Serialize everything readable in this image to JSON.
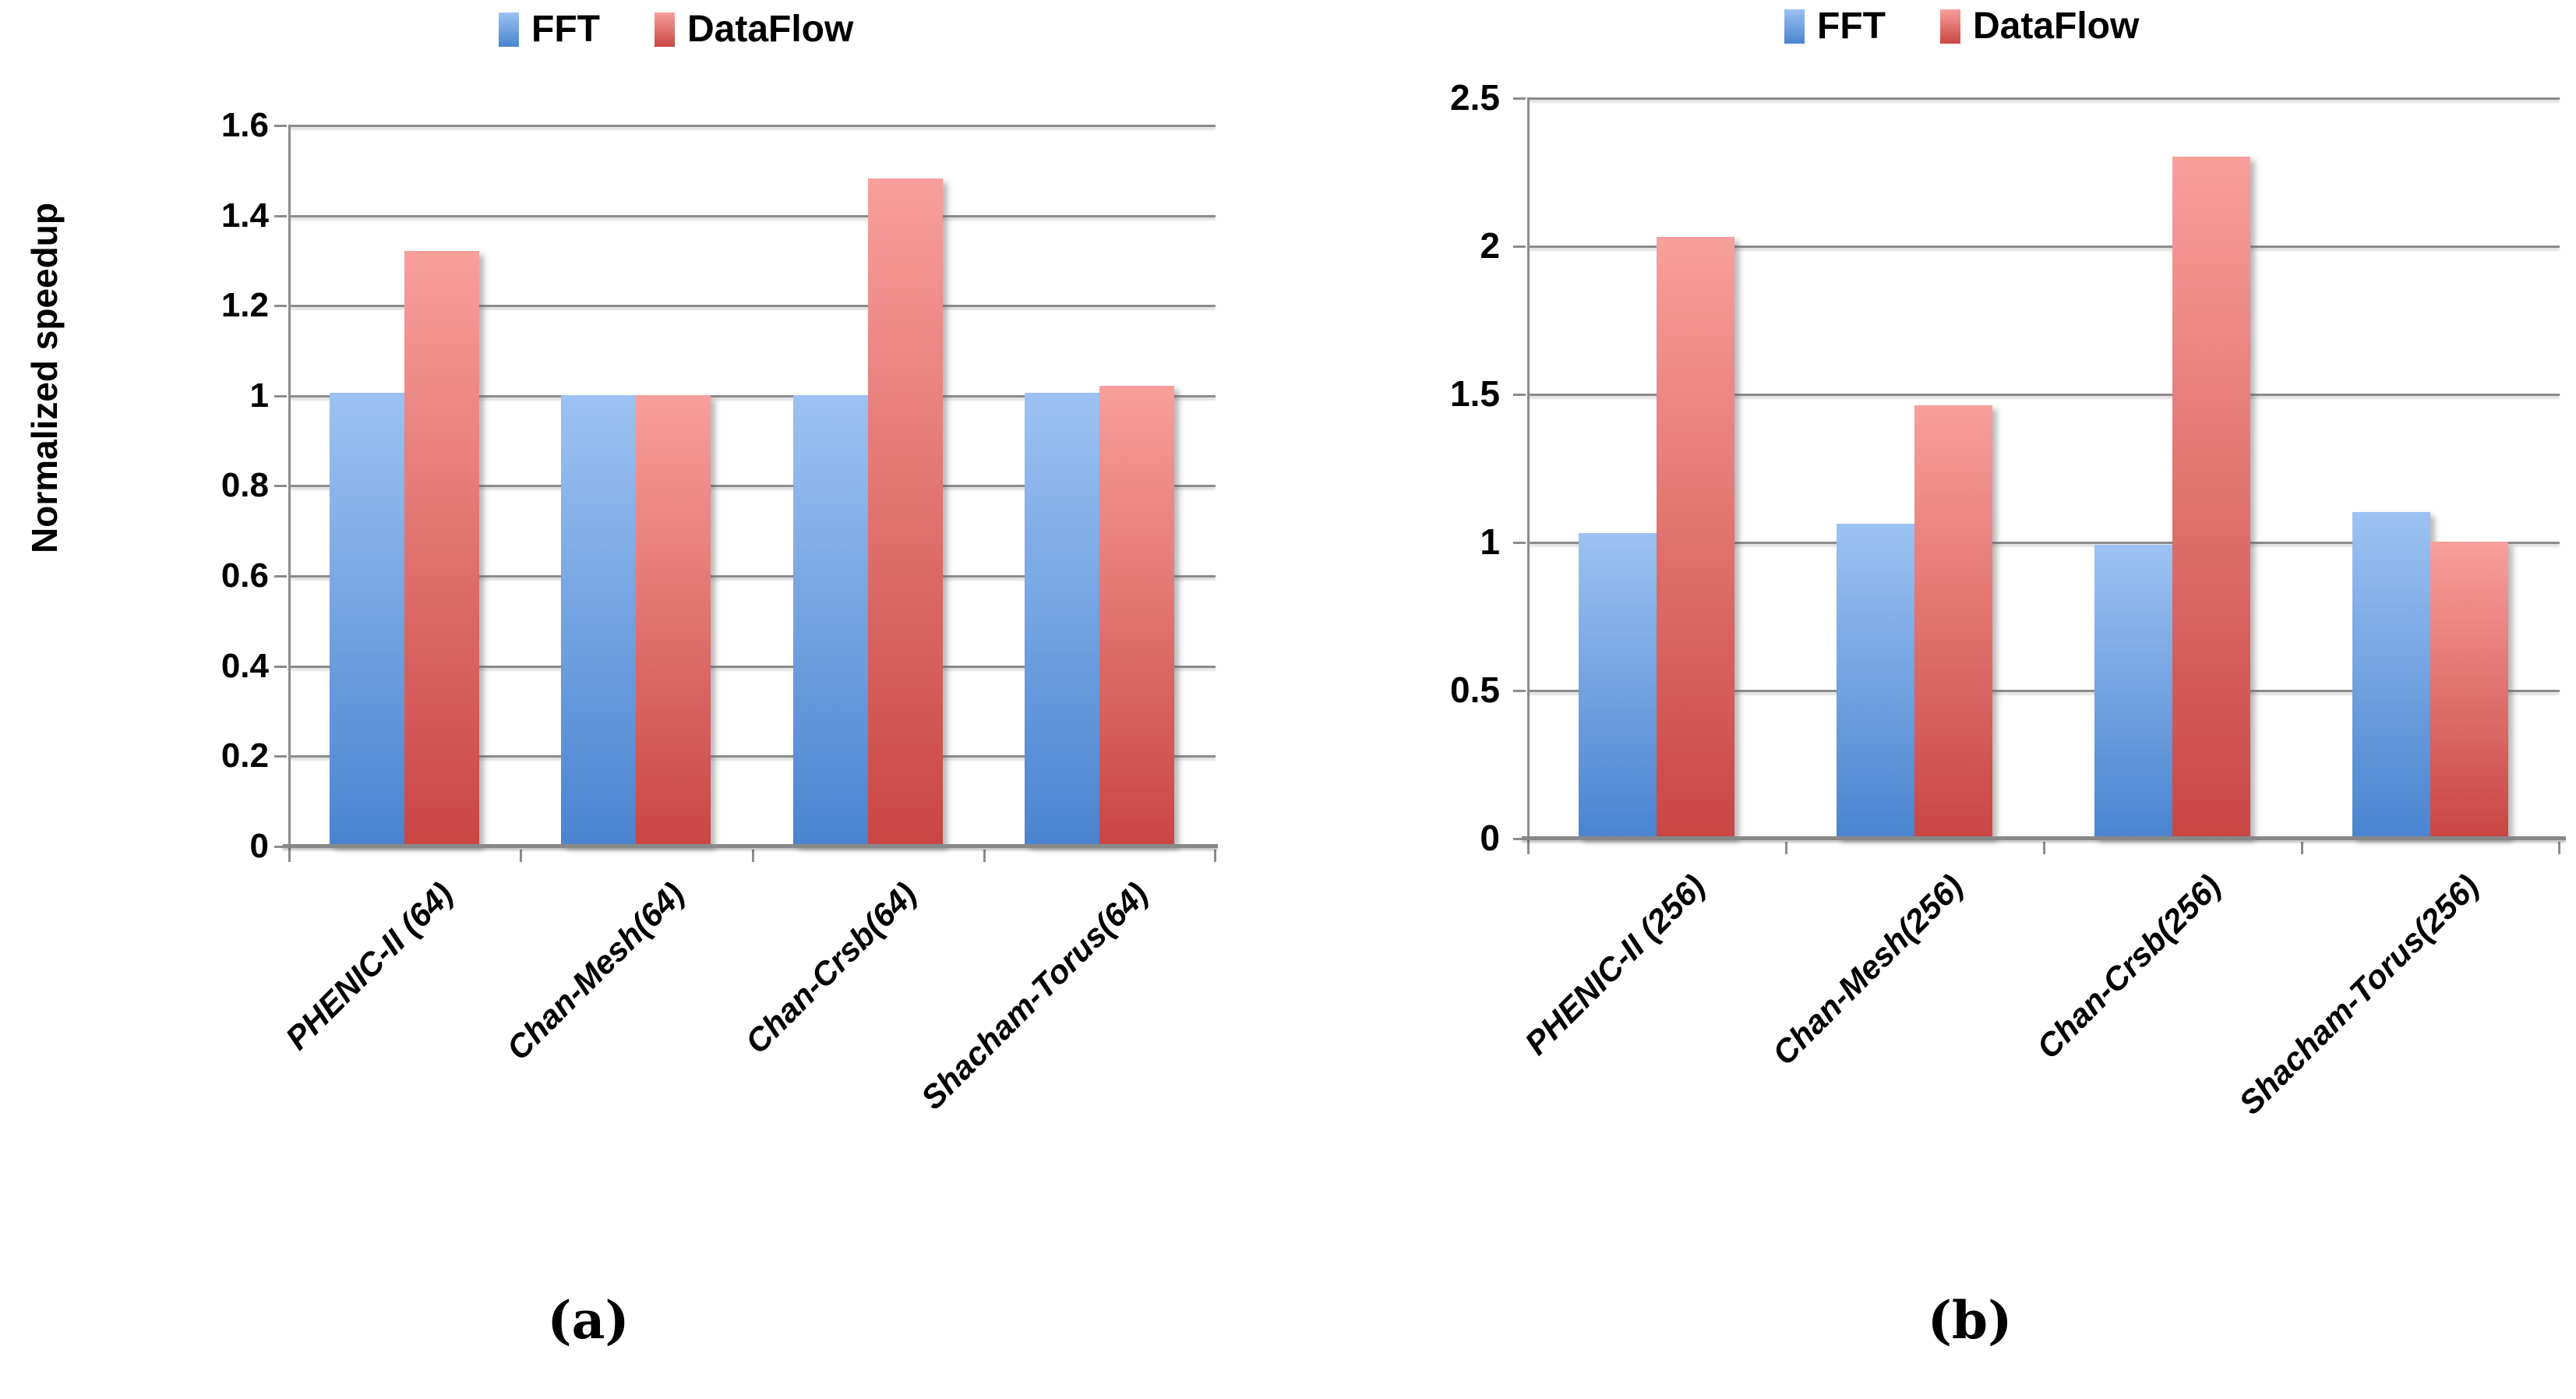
{
  "legend": {
    "items": [
      {
        "label": "FFT",
        "color_top": "#9CC2F2",
        "color_bottom": "#4A84D0"
      },
      {
        "label": "DataFlow",
        "color_top": "#F89F9C",
        "color_bottom": "#C94643"
      }
    ]
  },
  "colors": {
    "fft_top": "#9CC2F2",
    "fft_bottom": "#4A84D0",
    "dataflow_top": "#F89F9C",
    "dataflow_bottom": "#C94643",
    "gridline": "#8C8C8C",
    "text": "#000000"
  },
  "chart_data": [
    {
      "type": "bar",
      "panel": "a",
      "caption": "(a)",
      "ylabel": "Normalized speedup",
      "xlabel": "",
      "ylim": [
        0,
        1.6
      ],
      "grid": true,
      "legend_position": "top",
      "yticks": [
        "1.6",
        "1.4",
        "1.2",
        "1",
        "0.8",
        "0.6",
        "0.4",
        "0.2",
        "0"
      ],
      "categories": [
        "PHENIC-II (64)",
        "Chan-Mesh(64)",
        "Chan-Crsb(64)",
        "Shacham-Torus(64)"
      ],
      "series": [
        {
          "name": "FFT",
          "values": [
            1.005,
            1.0,
            1.0,
            1.005
          ]
        },
        {
          "name": "DataFlow",
          "values": [
            1.32,
            1.0,
            1.48,
            1.02
          ]
        }
      ]
    },
    {
      "type": "bar",
      "panel": "b",
      "caption": "(b)",
      "ylabel": "",
      "xlabel": "",
      "ylim": [
        0,
        2.5
      ],
      "grid": true,
      "legend_position": "top",
      "yticks": [
        "2.5",
        "2",
        "1.5",
        "1",
        "0.5",
        "0"
      ],
      "categories": [
        "PHENIC-II (256)",
        "Chan-Mesh(256)",
        "Chan-Crsb(256)",
        "Shacham-Torus(256)"
      ],
      "series": [
        {
          "name": "FFT",
          "values": [
            1.03,
            1.06,
            0.99,
            1.1
          ]
        },
        {
          "name": "DataFlow",
          "values": [
            2.03,
            1.46,
            2.3,
            1.0
          ]
        }
      ]
    }
  ]
}
